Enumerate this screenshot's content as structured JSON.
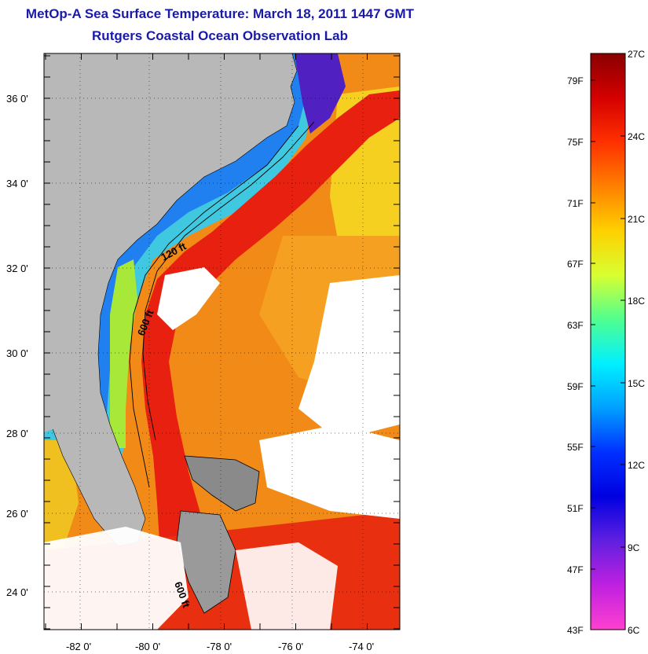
{
  "header": {
    "title": "MetOp-A Sea Surface Temperature:  March 18, 2011 1447 GMT",
    "subtitle": "Rutgers Coastal Ocean Observation Lab"
  },
  "map": {
    "latitude_labels": [
      "36 0'",
      "34 0'",
      "32 0'",
      "30 0'",
      "28 0'",
      "26 0'",
      "24 0'"
    ],
    "longitude_labels": [
      "-82 0'",
      "-80 0'",
      "-78 0'",
      "-76 0'",
      "-74 0'"
    ],
    "contour_labels": [
      "120 ft",
      "600 ft",
      "600 ft"
    ],
    "colors": {
      "land": "#b8b8b8",
      "cloud": "#ffffff",
      "gulf_stream": "#e82010",
      "warm_offshore": "#f59a18",
      "shelf_cool": "#2fd0e8",
      "coastal_cold": "#2050f0",
      "grid": "#000000"
    }
  },
  "colorbar": {
    "fahrenheit_labels": [
      "79F",
      "75F",
      "71F",
      "67F",
      "63F",
      "59F",
      "55F",
      "51F",
      "47F",
      "43F"
    ],
    "celsius_labels": [
      "27C",
      "24C",
      "21C",
      "18C",
      "15C",
      "12C",
      "9C",
      "6C"
    ],
    "gradient_stops": [
      "#8a0000",
      "#d40000",
      "#ff3000",
      "#ff8000",
      "#ffd000",
      "#d8ff30",
      "#50ff90",
      "#00f0ff",
      "#00a0ff",
      "#0030ff",
      "#0000e0",
      "#6020e0",
      "#c020e0",
      "#ff40d0"
    ]
  }
}
